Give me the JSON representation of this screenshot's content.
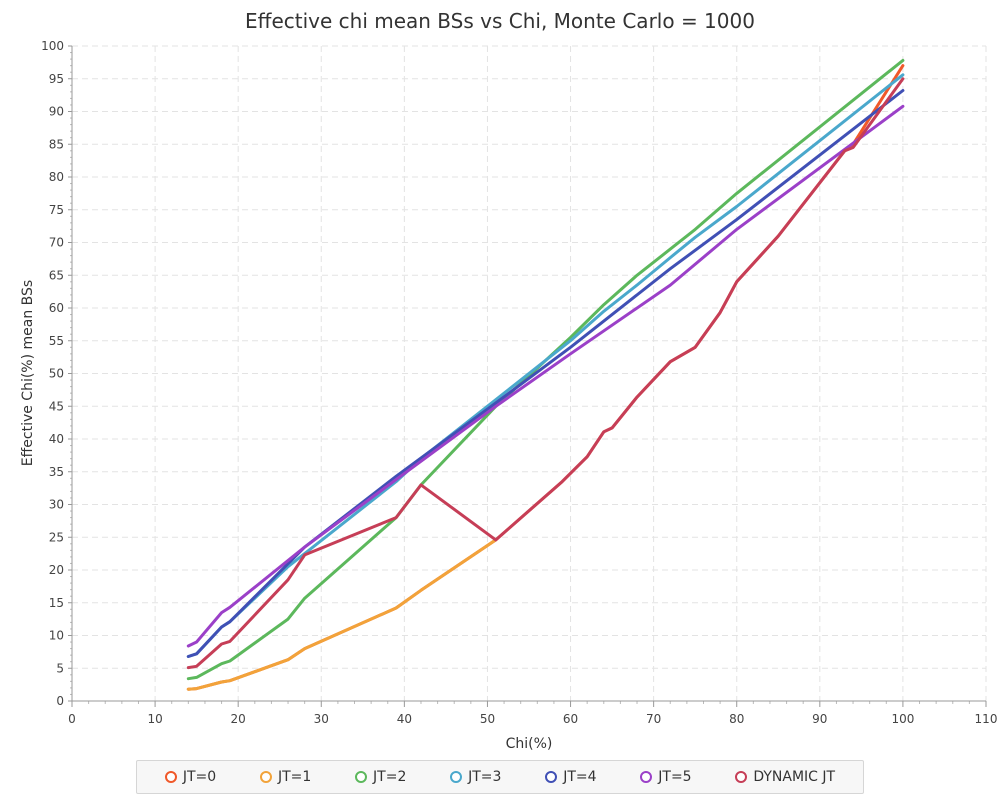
{
  "chart_data": {
    "type": "line",
    "title": "Effective chi mean BSs vs Chi, Monte Carlo = 1000",
    "xlabel": "Chi(%)",
    "ylabel": "Effective Chi(%) mean BSs",
    "xlim": [
      0,
      110
    ],
    "ylim": [
      0,
      100
    ],
    "x_ticks": [
      "0",
      "10",
      "20",
      "30",
      "40",
      "50",
      "60",
      "70",
      "80",
      "90",
      "100",
      "110"
    ],
    "y_ticks": [
      "0",
      "5",
      "10",
      "15",
      "20",
      "25",
      "30",
      "35",
      "40",
      "45",
      "50",
      "55",
      "60",
      "65",
      "70",
      "75",
      "80",
      "85",
      "90",
      "95",
      "100"
    ],
    "grid": true,
    "legend_position": "bottom",
    "series": [
      {
        "name": "JT=0",
        "color": "#f0592a",
        "x": [
          14,
          15,
          18,
          19,
          26,
          28,
          39,
          42,
          51,
          59,
          62,
          64,
          65,
          68,
          72,
          75,
          78,
          80,
          85,
          93,
          94,
          100
        ],
        "y": [
          1.8,
          1.9,
          2.9,
          3.1,
          6.3,
          8,
          14.2,
          16.9,
          24.6,
          33.5,
          37.3,
          41.1,
          41.7,
          46.4,
          51.8,
          54,
          59.3,
          64,
          71,
          84,
          85,
          97
        ]
      },
      {
        "name": "JT=1",
        "color": "#f2a33a",
        "x": [
          14,
          15,
          18,
          19,
          26,
          28,
          39,
          42,
          51
        ],
        "y": [
          1.8,
          1.9,
          2.9,
          3.1,
          6.3,
          8,
          14.2,
          16.9,
          24.6
        ]
      },
      {
        "name": "JT=2",
        "color": "#5cb85c",
        "x": [
          14,
          15,
          18,
          19,
          26,
          28,
          39,
          42,
          51,
          60,
          64,
          68,
          72,
          75,
          80,
          100
        ],
        "y": [
          3.4,
          3.6,
          5.7,
          6.1,
          12.5,
          15.7,
          28,
          33,
          45,
          55.5,
          60.5,
          65,
          69,
          72,
          77.5,
          97.8
        ]
      },
      {
        "name": "JT=3",
        "color": "#4aa8cc",
        "x": [
          14,
          15,
          18,
          19,
          26,
          28,
          39,
          42,
          51,
          60,
          64,
          68,
          72,
          75,
          80,
          100
        ],
        "y": [
          6.8,
          7.2,
          11.3,
          12.1,
          20.5,
          22.5,
          33.5,
          37,
          46,
          55,
          59.5,
          63.5,
          67.7,
          70.8,
          75.5,
          95.6
        ]
      },
      {
        "name": "JT=4",
        "color": "#4050b5",
        "x": [
          14,
          15,
          18,
          19,
          28,
          39,
          51,
          60,
          72,
          80,
          100
        ],
        "y": [
          6.8,
          7.2,
          11.3,
          12.1,
          23.5,
          34.3,
          45.5,
          54,
          66,
          73.5,
          93.2
        ]
      },
      {
        "name": "JT=5",
        "color": "#9b40c8",
        "x": [
          14,
          15,
          18,
          19,
          28,
          39,
          51,
          60,
          72,
          80,
          100
        ],
        "y": [
          8.4,
          9,
          13.5,
          14.3,
          23.5,
          33.8,
          45,
          53,
          63.5,
          72,
          90.8
        ]
      },
      {
        "name": "DYNAMIC JT",
        "color": "#c63e57",
        "x": [
          14,
          15,
          18,
          19,
          26,
          28,
          39,
          42,
          51,
          59,
          62,
          64,
          65,
          68,
          72,
          75,
          78,
          80,
          85,
          93,
          94,
          100
        ],
        "y": [
          5.1,
          5.3,
          8.7,
          9.1,
          18.5,
          22.3,
          28,
          33,
          24.6,
          33.5,
          37.3,
          41.1,
          41.7,
          46.4,
          51.8,
          54,
          59.3,
          64,
          71,
          84,
          84.5,
          95
        ]
      }
    ]
  }
}
